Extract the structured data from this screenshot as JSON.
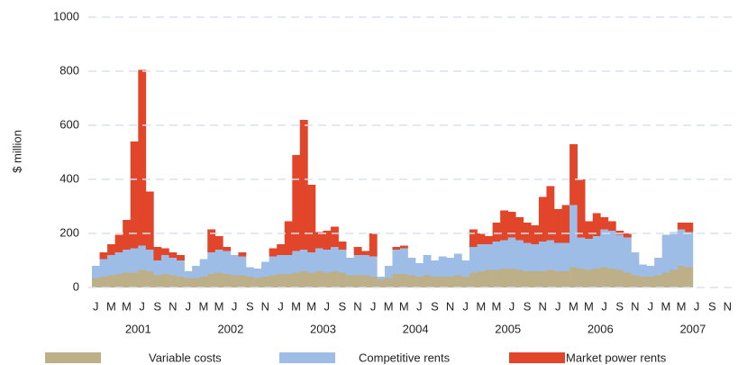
{
  "chart_data": {
    "type": "bar",
    "stacked": true,
    "y_label": "$ million",
    "ylim": [
      0,
      1000
    ],
    "yticks": [
      0,
      200,
      400,
      600,
      800,
      1000
    ],
    "grid": true,
    "categories": [
      "J",
      null,
      "M",
      null,
      "M",
      null,
      "J",
      null,
      "S",
      null,
      "N",
      null,
      "J",
      null,
      "M",
      null,
      "M",
      null,
      "J",
      null,
      "S",
      null,
      "N",
      null,
      "J",
      null,
      "M",
      null,
      "M",
      null,
      "J",
      null,
      "S",
      null,
      "N",
      null,
      "J",
      null,
      "M",
      null,
      "M",
      null,
      "J",
      null,
      "S",
      null,
      "N",
      null,
      "J",
      null,
      "M",
      null,
      "M",
      null,
      "J",
      null,
      "S",
      null,
      "N",
      null,
      "J",
      null,
      "M",
      null,
      "M",
      null,
      "J",
      null,
      "S",
      null,
      "N",
      null,
      "J",
      null,
      "M",
      null,
      "M",
      null,
      "J",
      null,
      "S",
      null,
      "N",
      null
    ],
    "years": [
      "2001",
      "2002",
      "2003",
      "2004",
      "2005",
      "2006",
      "2007"
    ],
    "series": [
      {
        "name": "Variable costs",
        "color": "#bdb088",
        "values": [
          35,
          40,
          45,
          50,
          55,
          55,
          65,
          60,
          45,
          50,
          45,
          40,
          35,
          35,
          40,
          50,
          55,
          50,
          45,
          45,
          40,
          35,
          40,
          45,
          50,
          50,
          55,
          60,
          55,
          60,
          55,
          60,
          55,
          45,
          45,
          45,
          40,
          30,
          35,
          50,
          50,
          45,
          40,
          45,
          40,
          40,
          40,
          45,
          40,
          55,
          60,
          65,
          65,
          70,
          70,
          65,
          60,
          60,
          60,
          65,
          60,
          60,
          75,
          70,
          65,
          70,
          75,
          70,
          65,
          55,
          45,
          40,
          40,
          45,
          55,
          65,
          80,
          75,
          null,
          null,
          null,
          null,
          null,
          null
        ]
      },
      {
        "name": "Competitive rents",
        "color": "#9dbde6",
        "values": [
          45,
          65,
          75,
          80,
          85,
          90,
          90,
          80,
          55,
          70,
          65,
          60,
          25,
          45,
          65,
          80,
          85,
          85,
          75,
          70,
          35,
          35,
          55,
          70,
          70,
          70,
          80,
          80,
          75,
          85,
          85,
          90,
          85,
          65,
          75,
          75,
          75,
          10,
          45,
          90,
          95,
          65,
          50,
          75,
          60,
          75,
          70,
          80,
          60,
          95,
          100,
          95,
          105,
          105,
          115,
          110,
          105,
          100,
          110,
          110,
          105,
          105,
          230,
          115,
          115,
          120,
          140,
          140,
          130,
          130,
          85,
          45,
          40,
          65,
          140,
          140,
          135,
          130,
          null,
          null,
          null,
          null,
          null,
          null
        ]
      },
      {
        "name": "Market power rents",
        "color": "#e2462a",
        "values": [
          0,
          25,
          40,
          65,
          110,
          395,
          650,
          215,
          50,
          25,
          20,
          20,
          0,
          0,
          0,
          85,
          50,
          15,
          0,
          15,
          0,
          0,
          0,
          30,
          40,
          125,
          355,
          480,
          250,
          60,
          70,
          75,
          30,
          0,
          30,
          15,
          85,
          0,
          0,
          10,
          10,
          0,
          0,
          0,
          0,
          0,
          0,
          0,
          0,
          65,
          40,
          30,
          70,
          110,
          95,
          85,
          75,
          70,
          165,
          200,
          125,
          140,
          225,
          215,
          65,
          85,
          45,
          35,
          15,
          15,
          0,
          0,
          0,
          0,
          0,
          0,
          25,
          35,
          null,
          null,
          null,
          null,
          null,
          null
        ]
      }
    ]
  }
}
